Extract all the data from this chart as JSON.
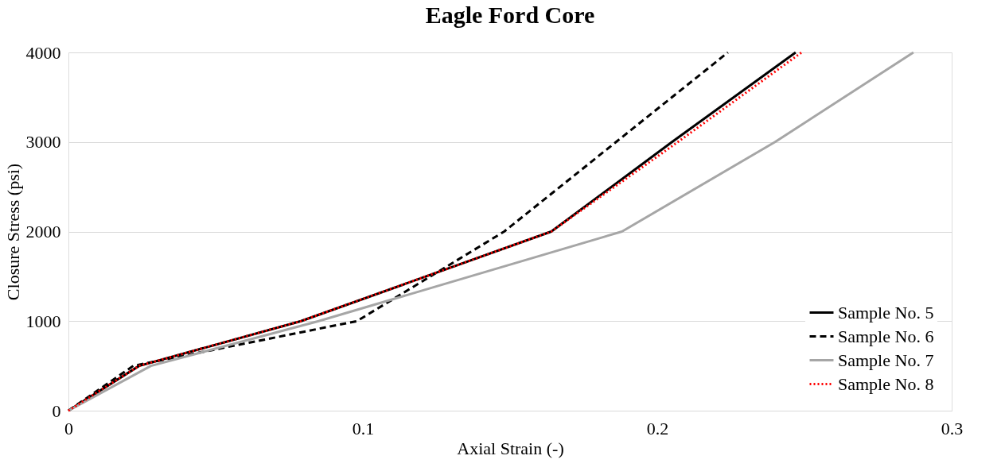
{
  "chart_data": {
    "type": "line",
    "title": "Eagle Ford Core",
    "xlabel": "Axial Strain (-)",
    "ylabel": "Closure Stress (psi)",
    "xlim": [
      0,
      0.3
    ],
    "xticks": [
      0,
      0.1,
      0.2,
      0.3
    ],
    "ylim": [
      0,
      4000
    ],
    "yticks": [
      0,
      1000,
      2000,
      3000,
      4000
    ],
    "grid": "y",
    "legend": "bottom right",
    "marker": "none",
    "series": [
      {
        "name": "Sample No. 5",
        "color": "#000000",
        "line_style": "solid",
        "x": [
          0,
          0.024,
          0.079,
          0.164,
          0.205,
          0.247
        ],
        "values": [
          0,
          500,
          1000,
          2000,
          3000,
          4000
        ]
      },
      {
        "name": "Sample No. 6",
        "color": "#000000",
        "line_style": "dashed",
        "x": [
          0,
          0.022,
          0.098,
          0.148,
          0.186,
          0.224
        ],
        "values": [
          0,
          500,
          1000,
          2000,
          3000,
          4000
        ]
      },
      {
        "name": "Sample No. 7",
        "color": "#a6a6a6",
        "line_style": "solid",
        "x": [
          0,
          0.028,
          0.085,
          0.188,
          0.24,
          0.287
        ],
        "values": [
          0,
          500,
          1000,
          2000,
          3000,
          4000
        ]
      },
      {
        "name": "Sample No. 8",
        "color": "#ff0000",
        "line_style": "dotted",
        "x": [
          0,
          0.024,
          0.079,
          0.164,
          0.207,
          0.249
        ],
        "values": [
          0,
          500,
          1000,
          2000,
          3000,
          4000
        ]
      }
    ]
  }
}
